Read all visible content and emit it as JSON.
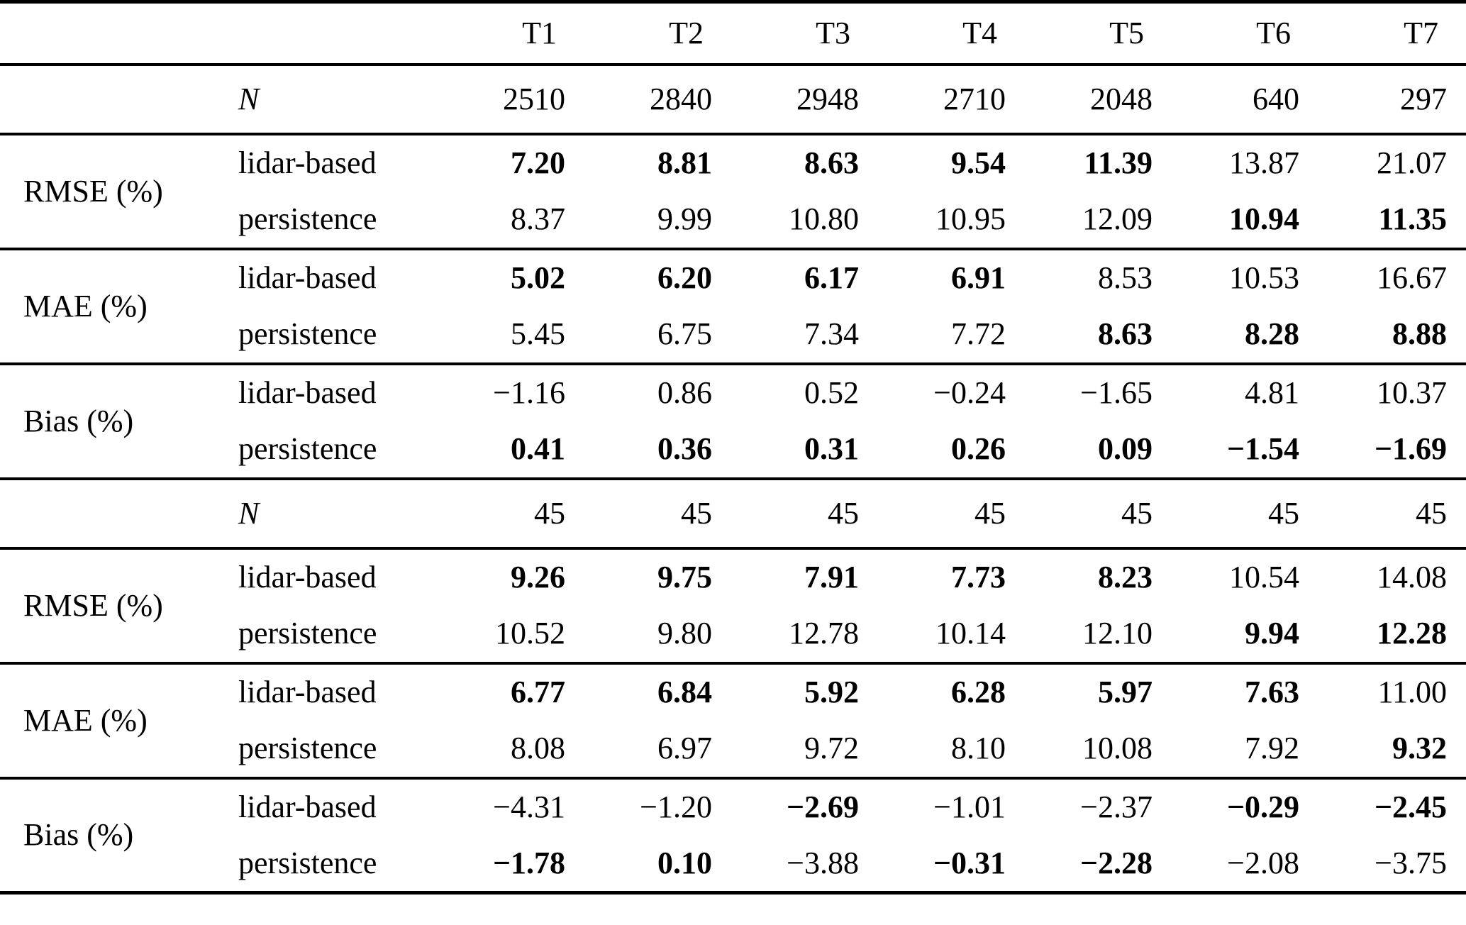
{
  "table": {
    "description": "Verification statistics table: lidar-based vs persistence forecasts for horizons T1-T7",
    "text_color": "#000000",
    "background_color": "#ffffff",
    "columns": [
      "T1",
      "T2",
      "T3",
      "T4",
      "T5",
      "T6",
      "T7"
    ],
    "sublabels": {
      "model_a": "lidar-based",
      "model_b": "persistence",
      "count": "N"
    },
    "sections": [
      {
        "kind": "count",
        "row_label": "N",
        "values": [
          "2510",
          "2840",
          "2948",
          "2710",
          "2048",
          "640",
          "297"
        ],
        "bold": [
          0,
          0,
          0,
          0,
          0,
          0,
          0
        ]
      },
      {
        "kind": "metric",
        "metric": "RMSE (%)",
        "rows": [
          {
            "label": "lidar-based",
            "values": [
              "7.20",
              "8.81",
              "8.63",
              "9.54",
              "11.39",
              "13.87",
              "21.07"
            ],
            "bold": [
              1,
              1,
              1,
              1,
              1,
              0,
              0
            ]
          },
          {
            "label": "persistence",
            "values": [
              "8.37",
              "9.99",
              "10.80",
              "10.95",
              "12.09",
              "10.94",
              "11.35"
            ],
            "bold": [
              0,
              0,
              0,
              0,
              0,
              1,
              1
            ]
          }
        ]
      },
      {
        "kind": "metric",
        "metric": "MAE (%)",
        "rows": [
          {
            "label": "lidar-based",
            "values": [
              "5.02",
              "6.20",
              "6.17",
              "6.91",
              "8.53",
              "10.53",
              "16.67"
            ],
            "bold": [
              1,
              1,
              1,
              1,
              0,
              0,
              0
            ]
          },
          {
            "label": "persistence",
            "values": [
              "5.45",
              "6.75",
              "7.34",
              "7.72",
              "8.63",
              "8.28",
              "8.88"
            ],
            "bold": [
              0,
              0,
              0,
              0,
              1,
              1,
              1
            ]
          }
        ]
      },
      {
        "kind": "metric",
        "metric": "Bias (%)",
        "rows": [
          {
            "label": "lidar-based",
            "values": [
              "−1.16",
              "0.86",
              "0.52",
              "−0.24",
              "−1.65",
              "4.81",
              "10.37"
            ],
            "bold": [
              0,
              0,
              0,
              0,
              0,
              0,
              0
            ]
          },
          {
            "label": "persistence",
            "values": [
              "0.41",
              "0.36",
              "0.31",
              "0.26",
              "0.09",
              "−1.54",
              "−1.69"
            ],
            "bold": [
              1,
              1,
              1,
              1,
              1,
              1,
              1
            ]
          }
        ]
      },
      {
        "kind": "count",
        "row_label": "N",
        "values": [
          "45",
          "45",
          "45",
          "45",
          "45",
          "45",
          "45"
        ],
        "bold": [
          0,
          0,
          0,
          0,
          0,
          0,
          0
        ]
      },
      {
        "kind": "metric",
        "metric": "RMSE (%)",
        "rows": [
          {
            "label": "lidar-based",
            "values": [
              "9.26",
              "9.75",
              "7.91",
              "7.73",
              "8.23",
              "10.54",
              "14.08"
            ],
            "bold": [
              1,
              1,
              1,
              1,
              1,
              0,
              0
            ]
          },
          {
            "label": "persistence",
            "values": [
              "10.52",
              "9.80",
              "12.78",
              "10.14",
              "12.10",
              "9.94",
              "12.28"
            ],
            "bold": [
              0,
              0,
              0,
              0,
              0,
              1,
              1
            ]
          }
        ]
      },
      {
        "kind": "metric",
        "metric": "MAE (%)",
        "rows": [
          {
            "label": "lidar-based",
            "values": [
              "6.77",
              "6.84",
              "5.92",
              "6.28",
              "5.97",
              "7.63",
              "11.00"
            ],
            "bold": [
              1,
              1,
              1,
              1,
              1,
              1,
              0
            ]
          },
          {
            "label": "persistence",
            "values": [
              "8.08",
              "6.97",
              "9.72",
              "8.10",
              "10.08",
              "7.92",
              "9.32"
            ],
            "bold": [
              0,
              0,
              0,
              0,
              0,
              0,
              1
            ]
          }
        ]
      },
      {
        "kind": "metric",
        "metric": "Bias (%)",
        "rows": [
          {
            "label": "lidar-based",
            "values": [
              "−4.31",
              "−1.20",
              "−2.69",
              "−1.01",
              "−2.37",
              "−0.29",
              "−2.45"
            ],
            "bold": [
              0,
              0,
              1,
              0,
              0,
              1,
              1
            ]
          },
          {
            "label": "persistence",
            "values": [
              "−1.78",
              "0.10",
              "−3.88",
              "−0.31",
              "−2.28",
              "−2.08",
              "−3.75"
            ],
            "bold": [
              1,
              1,
              0,
              1,
              1,
              0,
              0
            ]
          }
        ]
      }
    ]
  }
}
